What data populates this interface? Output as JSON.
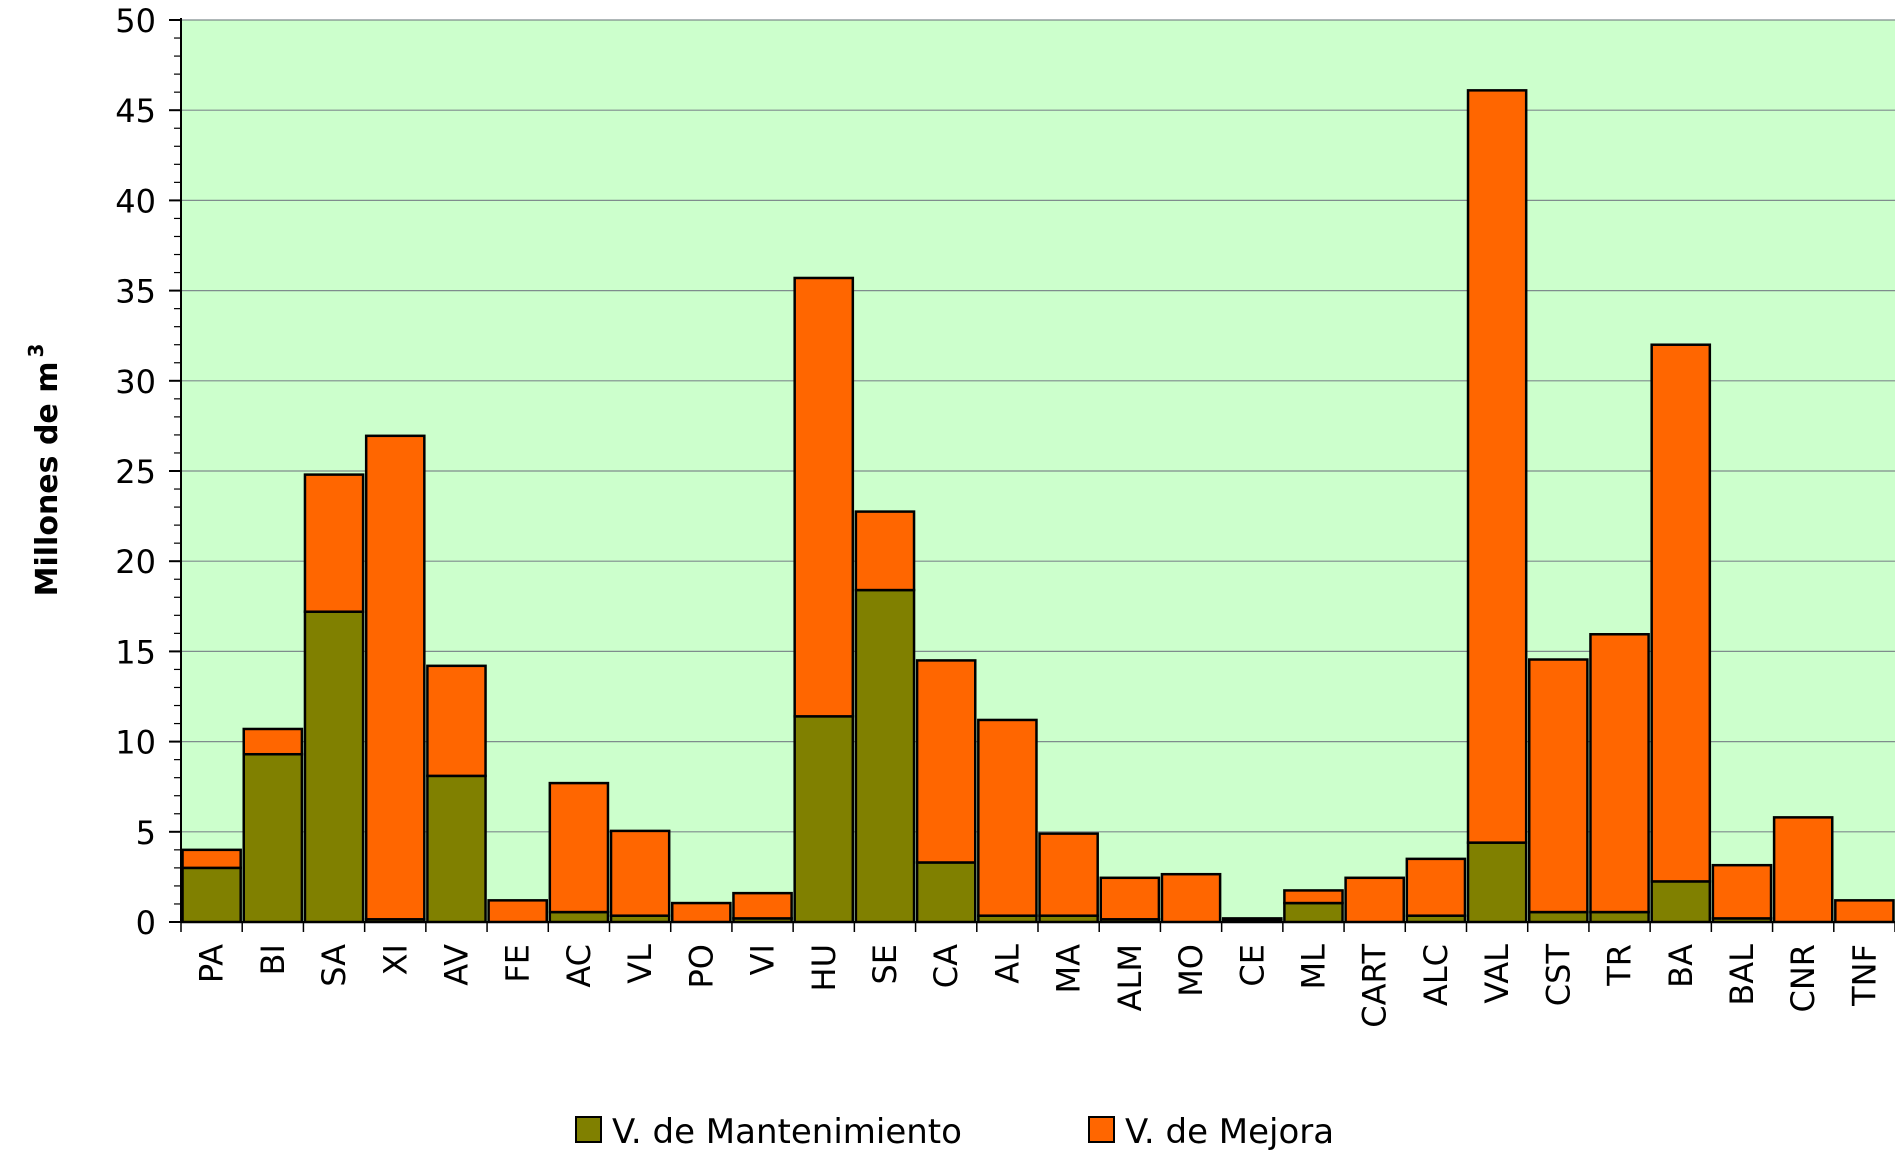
{
  "chart_data": {
    "type": "bar",
    "stacked": true,
    "title": "",
    "xlabel": "",
    "ylabel": "Millones de m",
    "ylabel_superscript": "3",
    "ylim": [
      0,
      50
    ],
    "yticks": [
      0,
      5,
      10,
      15,
      20,
      25,
      30,
      35,
      40,
      45,
      50
    ],
    "grid": true,
    "legend_position": "bottom",
    "plot_background": "#ccffcc",
    "categories": [
      "PA",
      "BI",
      "SA",
      "XI",
      "AV",
      "FE",
      "AC",
      "VL",
      "PO",
      "VI",
      "HU",
      "SE",
      "CA",
      "AL",
      "MA",
      "ALM",
      "MO",
      "CE",
      "ML",
      "CART",
      "ALC",
      "VAL",
      "CST",
      "TR",
      "BA",
      "BAL",
      "CNR",
      "TNF"
    ],
    "series": [
      {
        "name": "V. de Mantenimiento",
        "color": "#808000",
        "values": [
          3.0,
          9.3,
          17.2,
          0.15,
          8.1,
          0.0,
          0.55,
          0.35,
          0.0,
          0.2,
          11.4,
          18.4,
          3.3,
          0.35,
          0.35,
          0.15,
          0.0,
          0.1,
          1.05,
          0.0,
          0.35,
          4.4,
          0.55,
          0.55,
          2.25,
          0.2,
          0.0,
          0.0
        ]
      },
      {
        "name": "V. de Mejora",
        "color": "#ff6600",
        "values": [
          1.0,
          1.4,
          7.6,
          26.8,
          6.1,
          1.2,
          7.15,
          4.7,
          1.05,
          1.4,
          24.3,
          4.35,
          11.2,
          10.85,
          4.55,
          2.3,
          2.65,
          0.1,
          0.7,
          2.45,
          3.15,
          41.7,
          14.0,
          15.4,
          29.75,
          2.95,
          5.8,
          1.2
        ]
      }
    ]
  }
}
